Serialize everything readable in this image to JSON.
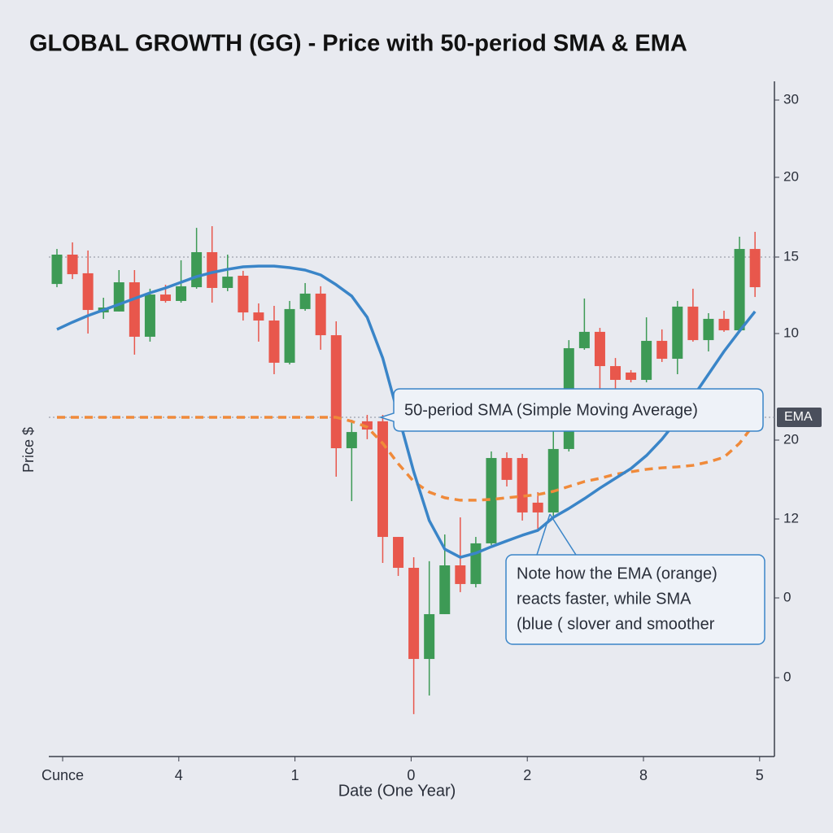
{
  "chart_data": {
    "type": "candlestick",
    "title": "GLOBAL GROWTH (GG) - Price with 50-period SMA & EMA",
    "y_label": "Price $",
    "x_label": "Date (One Year)",
    "x_labels": [
      "Cunce",
      "4",
      "1",
      "0",
      "2",
      "8",
      "5"
    ],
    "y_axis_labels": [
      "30",
      "20",
      "15",
      "10",
      "EMA",
      "20",
      "12",
      "0",
      "0"
    ],
    "ylim": [
      -17.66,
      26.49
    ],
    "reference_lines": [
      15,
      4.52
    ],
    "up_color": "#3d9a55",
    "down_color": "#e8574c",
    "candles": {
      "open": [
        13.24,
        15.16,
        13.94,
        11.38,
        11.44,
        13.35,
        9.79,
        12.55,
        12.13,
        13.03,
        15.32,
        12.98,
        13.78,
        11.38,
        10.85,
        8.09,
        11.6,
        12.61,
        9.89,
        2.5,
        4.26,
        4.26,
        -3.3,
        -5.32,
        -11.28,
        -8.35,
        -5.16,
        -6.38,
        -3.72,
        1.86,
        1.86,
        -1.06,
        -1.7,
        2.45,
        9.04,
        10.11,
        7.87,
        7.45,
        6.97,
        9.52,
        8.35,
        11.76,
        9.57,
        10.96,
        10.21,
        15.53
      ],
      "high": [
        15.53,
        15.96,
        15.43,
        12.34,
        14.15,
        14.15,
        12.93,
        13.19,
        14.79,
        16.91,
        17.02,
        15.16,
        14.1,
        11.97,
        11.81,
        12.13,
        13.3,
        13.09,
        10.8,
        4.36,
        4.68,
        4.68,
        -3.3,
        -4.63,
        -4.89,
        -3.14,
        -2.02,
        -3.3,
        2.29,
        2.23,
        2.13,
        -0.37,
        3.62,
        9.57,
        12.29,
        10.37,
        8.4,
        7.61,
        11.06,
        10.27,
        12.13,
        12.93,
        11.33,
        11.49,
        16.33,
        16.65
      ],
      "low": [
        13.03,
        13.56,
        10.0,
        10.96,
        11.44,
        8.62,
        9.47,
        12.02,
        12.02,
        12.93,
        12.02,
        12.77,
        10.85,
        9.47,
        7.34,
        7.98,
        11.49,
        8.94,
        0.64,
        -0.96,
        3.09,
        -5.0,
        -5.85,
        -14.89,
        -13.67,
        -8.35,
        -6.91,
        -6.6,
        -3.83,
        0,
        -2.23,
        -2.77,
        -2.13,
        2.29,
        8.94,
        6.28,
        6.28,
        6.81,
        6.81,
        8.14,
        7.34,
        9.47,
        8.83,
        10.11,
        10.11,
        12.39
      ],
      "close": [
        15.16,
        13.88,
        11.54,
        11.7,
        13.35,
        9.79,
        12.55,
        12.13,
        13.09,
        15.32,
        12.98,
        13.72,
        11.38,
        10.85,
        8.09,
        11.6,
        12.61,
        9.89,
        2.5,
        3.56,
        3.72,
        -3.3,
        -5.32,
        -11.28,
        -8.35,
        -5.16,
        -6.38,
        -3.72,
        1.86,
        0.43,
        -1.7,
        -1.7,
        2.45,
        9.04,
        10.11,
        7.87,
        6.97,
        6.97,
        9.52,
        8.35,
        11.76,
        9.57,
        10.96,
        10.21,
        15.53,
        13.03
      ]
    },
    "sma": {
      "color": "#3a85c8",
      "values": [
        10.27,
        10.74,
        11.17,
        11.54,
        11.91,
        12.29,
        12.66,
        12.98,
        13.35,
        13.72,
        13.99,
        14.2,
        14.36,
        14.41,
        14.41,
        14.31,
        14.15,
        13.83,
        13.19,
        12.45,
        11.06,
        8.4,
        4.68,
        0.96,
        -2.23,
        -4.1,
        -4.63,
        -4.36,
        -3.94,
        -3.56,
        -3.19,
        -2.87,
        -2.02,
        -1.44,
        -0.8,
        -0.11,
        0.53,
        1.17,
        2.02,
        3.09,
        4.36,
        5.85,
        7.34,
        8.83,
        10.16,
        11.44
      ]
    },
    "ema": {
      "color": "#f08a3a",
      "dashed": true,
      "values": [
        4.52,
        4.52,
        4.52,
        4.52,
        4.52,
        4.52,
        4.52,
        4.52,
        4.52,
        4.52,
        4.52,
        4.52,
        4.52,
        4.52,
        4.52,
        4.52,
        4.52,
        4.52,
        4.52,
        4.26,
        3.88,
        2.82,
        1.49,
        0.32,
        -0.37,
        -0.74,
        -0.9,
        -0.9,
        -0.85,
        -0.74,
        -0.64,
        -0.53,
        -0.32,
        0,
        0.32,
        0.53,
        0.8,
        0.96,
        1.12,
        1.22,
        1.28,
        1.38,
        1.6,
        1.91,
        2.82,
        4.15
      ]
    },
    "annotations": {
      "sma_label": "50-period SMA (Simple Moving Average)",
      "note": [
        "Note how the EMA (orange)",
        "reacts faster, while SMA",
        "(blue ( slover and smoother"
      ]
    }
  }
}
